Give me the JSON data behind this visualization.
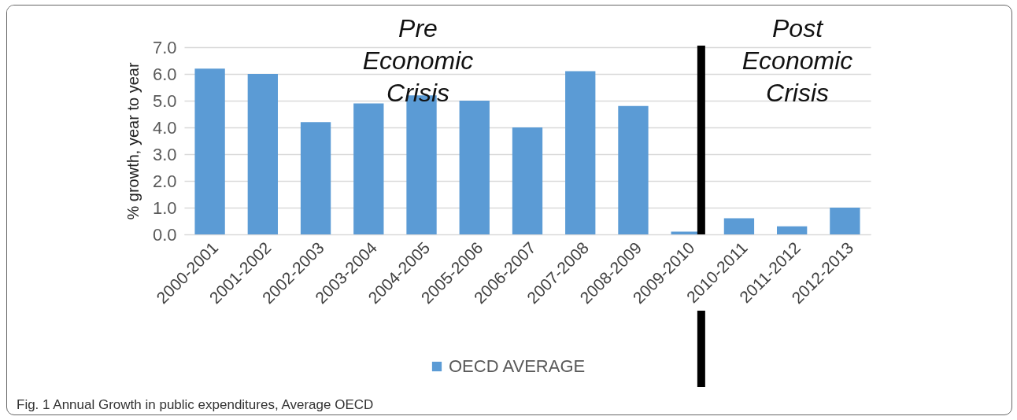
{
  "chart_data": {
    "type": "bar",
    "categories": [
      "2000-2001",
      "2001-2002",
      "2002-2003",
      "2003-2004",
      "2004-2005",
      "2005-2006",
      "2006-2007",
      "2007-2008",
      "2008-2009",
      "2009-2010",
      "2010-2011",
      "2011-2012",
      "2012-2013"
    ],
    "series": [
      {
        "name": "OECD AVERAGE",
        "color": "#5b9bd5",
        "values": [
          6.2,
          6.0,
          4.2,
          4.9,
          5.2,
          5.0,
          4.0,
          6.1,
          4.8,
          0.1,
          0.6,
          0.3,
          1.0
        ]
      }
    ],
    "ylabel": "% growth, year to year",
    "ylim": [
      0,
      7
    ],
    "yticks": [
      {
        "value": 0,
        "label": "0.0"
      },
      {
        "value": 1,
        "label": "1.0"
      },
      {
        "value": 2,
        "label": "2.0"
      },
      {
        "value": 3,
        "label": "3.0"
      },
      {
        "value": 4,
        "label": "4.0"
      },
      {
        "value": 5,
        "label": "5.0"
      },
      {
        "value": 6,
        "label": "6.0"
      },
      {
        "value": 7,
        "label": "7.0"
      }
    ],
    "grid": "y",
    "legend": "bottom",
    "ref_lines": [
      {
        "axis": "x",
        "value": "2009-2010",
        "color": "#000000"
      }
    ],
    "annotations": [
      "Pre Economic Crisis",
      "Post Economic Crisis",
      "Fig. 1 Annual Growth in public expenditures, Average OECD"
    ]
  }
}
